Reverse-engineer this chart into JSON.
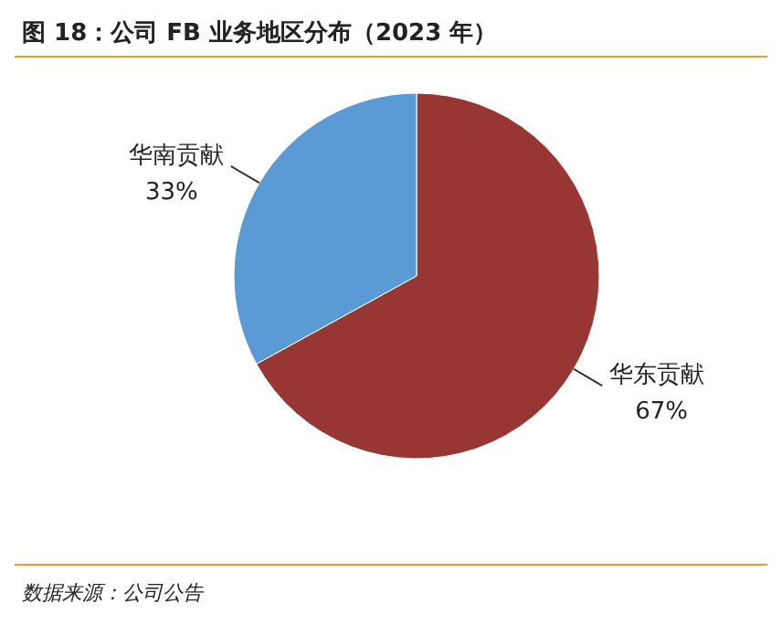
{
  "chart_data": {
    "type": "pie",
    "title": "图 18：公司 FB 业务地区分布（2023 年）",
    "categories": [
      "华东贡献",
      "华南贡献"
    ],
    "values": [
      67,
      33
    ],
    "colors": [
      "#983634",
      "#5b9bd5"
    ],
    "value_labels": [
      "67%",
      "33%"
    ],
    "legend": false,
    "annotations": [
      "数据来源：公司公告"
    ]
  }
}
